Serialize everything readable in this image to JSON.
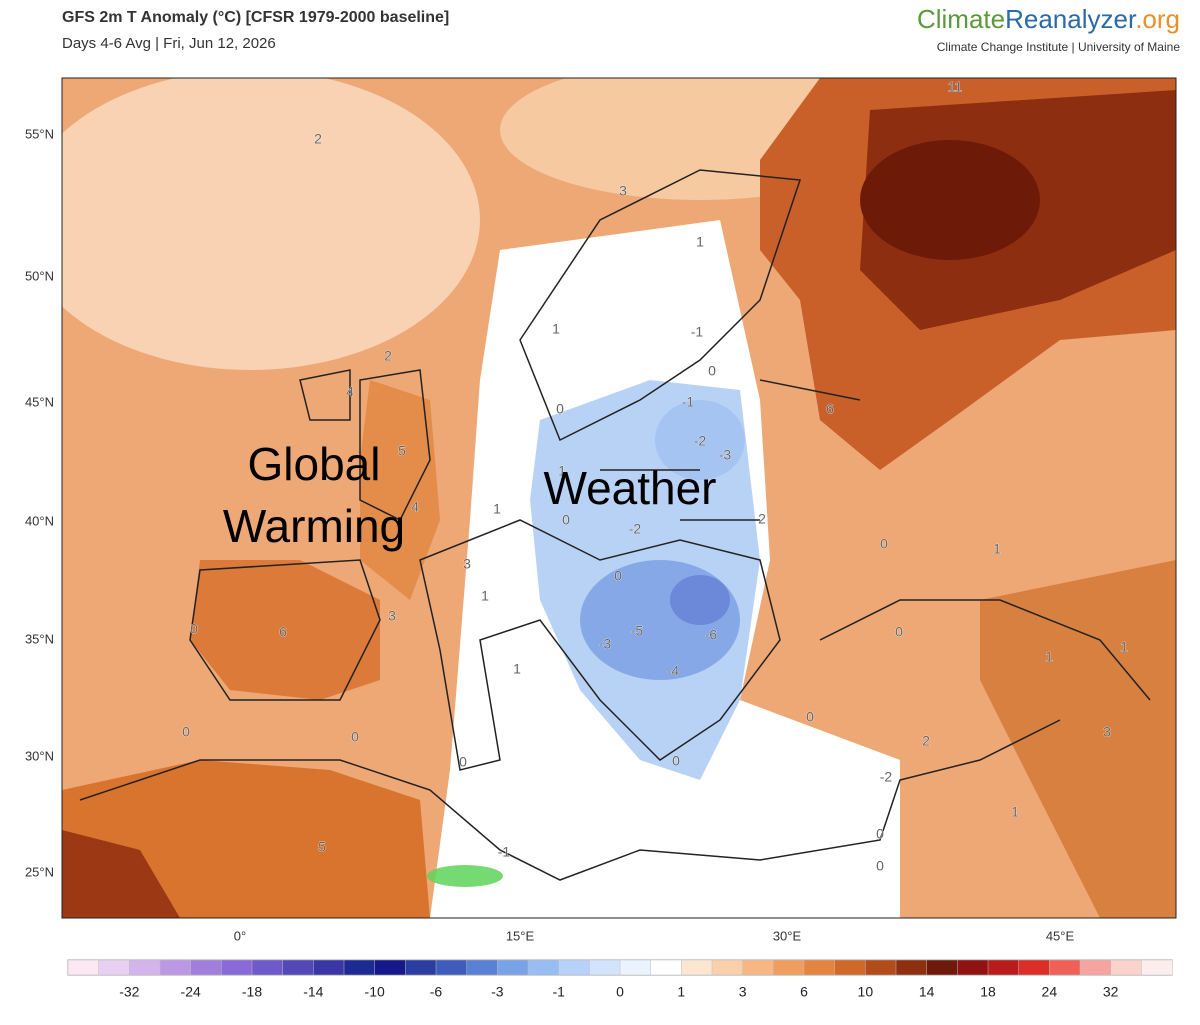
{
  "header": {
    "title": "GFS 2m T Anomaly (°C) [CFSR 1979-2000 baseline]",
    "subtitle": "Days 4-6 Avg | Fri, Jun 12, 2026",
    "logo": {
      "parts": [
        "Climate",
        "Reanalyzer",
        ".org"
      ],
      "colors": [
        "#5b9a3a",
        "#2b6aa6",
        "#e8902a"
      ],
      "credit": "Climate Change Institute | University of Maine"
    }
  },
  "map": {
    "lat_labels": [
      "55°N",
      "50°N",
      "45°N",
      "40°N",
      "35°N",
      "30°N",
      "25°N"
    ],
    "lon_labels": [
      "0°",
      "15°E",
      "30°E",
      "45°E"
    ],
    "contour_labels": [
      "11",
      "2",
      "3",
      "1",
      "1",
      "-1",
      "2",
      "0",
      "4",
      "0",
      "-1",
      "6",
      "5",
      "-2",
      "-3",
      "1",
      "4",
      "1",
      "0",
      "-2",
      "2",
      "0",
      "1",
      "3",
      "0",
      "1",
      "3",
      "0",
      "6",
      "-3",
      "-5",
      "-6",
      "0",
      "1",
      "1",
      "1",
      "-4",
      "0",
      "0",
      "0",
      "2",
      "3",
      "0",
      "0",
      "-2",
      "1",
      "0",
      "5",
      "-1",
      "0"
    ],
    "annotations": [
      "Global",
      "Warming",
      "Weather"
    ]
  },
  "colorbar": {
    "labels": [
      -32,
      -24,
      -18,
      -14,
      -10,
      -6,
      -3,
      -1,
      0,
      1,
      3,
      6,
      10,
      14,
      18,
      24,
      32
    ],
    "colors": [
      "#fbe8f2",
      "#e8d0f0",
      "#d4b4ec",
      "#bc98e4",
      "#a27edc",
      "#8a6ad6",
      "#6e5ac8",
      "#5248b8",
      "#3a36a6",
      "#1e2a94",
      "#14188a",
      "#2a3ea2",
      "#3e5cbc",
      "#5a80d4",
      "#7aa2e6",
      "#98bdf2",
      "#b6d2f8",
      "#d2e4fb",
      "#eaf3fe",
      "#ffffff",
      "#fde6d0",
      "#fad0aa",
      "#f6b784",
      "#f09e60",
      "#e48440",
      "#d0692a",
      "#b24c1a",
      "#8e3010",
      "#6e1a08",
      "#901212",
      "#b81c1c",
      "#dc2e28",
      "#f06058",
      "#f6a4a0",
      "#fbd2cc",
      "#fdeeee"
    ]
  }
}
